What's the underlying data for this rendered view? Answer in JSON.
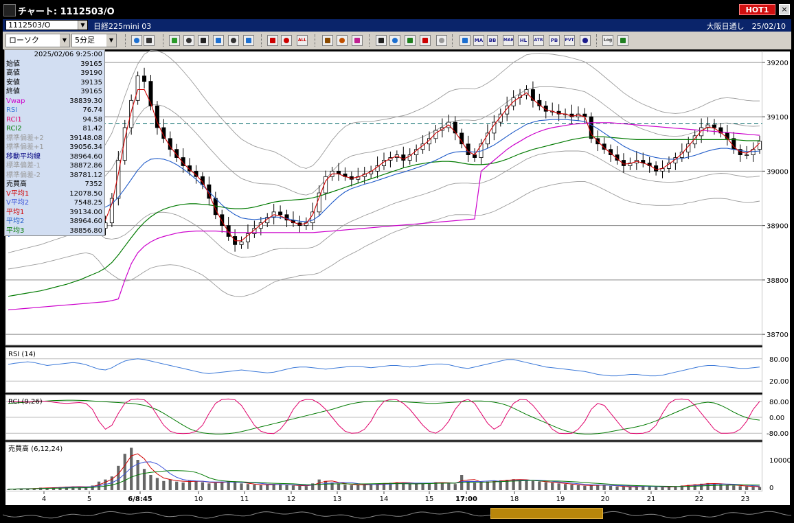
{
  "window": {
    "title": "チャート: 1112503/O",
    "hot_label": "HOT1",
    "close_label": "×"
  },
  "infobar": {
    "symbol": "1112503/O",
    "instrument": "日経225mini 03",
    "right_text": "大阪日通し　25/02/10"
  },
  "toolbar": {
    "chart_type": "ローソク",
    "period": "5分足",
    "buttons": [
      {
        "name": "zoom-icon",
        "label": ""
      },
      {
        "name": "split-icon",
        "label": ""
      },
      {
        "name": "draw-line-icon",
        "label": ""
      },
      {
        "name": "brush-icon",
        "label": ""
      },
      {
        "name": "cursor-icon",
        "label": ""
      },
      {
        "name": "undo-icon",
        "label": ""
      },
      {
        "name": "print-icon",
        "label": ""
      },
      {
        "name": "clear-icon",
        "label": ""
      },
      {
        "name": "candle-icon",
        "label": ""
      },
      {
        "name": "candle2-icon",
        "label": ""
      },
      {
        "name": "all-button",
        "label": "ALL"
      },
      {
        "name": "gear-icon",
        "label": ""
      },
      {
        "name": "wrench-icon",
        "label": ""
      },
      {
        "name": "color-icon",
        "label": ""
      },
      {
        "name": "down-arrow-icon",
        "label": ""
      },
      {
        "name": "search-icon",
        "label": ""
      },
      {
        "name": "bars-icon",
        "label": ""
      },
      {
        "name": "cross-icon",
        "label": ""
      },
      {
        "name": "disabled-icon",
        "label": ""
      },
      {
        "name": "ichimoku-icon",
        "label": ""
      },
      {
        "name": "ma-button",
        "label": "MA"
      },
      {
        "name": "bb-button",
        "label": "BB"
      },
      {
        "name": "mae-button",
        "label": "MAE"
      },
      {
        "name": "hl-button",
        "label": "HL"
      },
      {
        "name": "atr-button",
        "label": "ATR"
      },
      {
        "name": "pb-button",
        "label": "PB"
      },
      {
        "name": "pvt-button",
        "label": "PVT"
      },
      {
        "name": "box-icon",
        "label": ""
      },
      {
        "name": "log-button",
        "label": "Log"
      },
      {
        "name": "export-icon",
        "label": ""
      }
    ]
  },
  "datapanel": {
    "datetime": "2025/02/06 9:25:00",
    "rows": [
      {
        "label": "始値",
        "value": "39165",
        "color": "#000000"
      },
      {
        "label": "高値",
        "value": "39190",
        "color": "#000000"
      },
      {
        "label": "安値",
        "value": "39135",
        "color": "#000000"
      },
      {
        "label": "終値",
        "value": "39165",
        "color": "#000000"
      },
      {
        "label": "Vwap",
        "value": "38839.30",
        "color": "#cc00cc"
      },
      {
        "label": "RSI",
        "value": "76.74",
        "color": "#3a78d8"
      },
      {
        "label": "RCI1",
        "value": "94.58",
        "color": "#e0006a"
      },
      {
        "label": "RCI2",
        "value": "81.42",
        "color": "#007a00"
      },
      {
        "label": "標準偏差+2",
        "value": "39148.08",
        "color": "#9a9a9a"
      },
      {
        "label": "標準偏差+1",
        "value": "39056.34",
        "color": "#9a9a9a"
      },
      {
        "label": "移動平均線",
        "value": "38964.60",
        "color": "#000080"
      },
      {
        "label": "標準偏差-1",
        "value": "38872.86",
        "color": "#9a9a9a"
      },
      {
        "label": "標準偏差-2",
        "value": "38781.12",
        "color": "#9a9a9a"
      },
      {
        "label": "売買高",
        "value": "7352",
        "color": "#000000"
      },
      {
        "label": "V平均1",
        "value": "12078.50",
        "color": "#d00000"
      },
      {
        "label": "V平均2",
        "value": "7548.25",
        "color": "#3a50d8"
      },
      {
        "label": "平均1",
        "value": "39134.00",
        "color": "#d00000"
      },
      {
        "label": "平均2",
        "value": "38964.60",
        "color": "#1e5ac8"
      },
      {
        "label": "平均3",
        "value": "38856.80",
        "color": "#007a00"
      }
    ]
  },
  "chart_data": {
    "type": "candlestick",
    "price_axis": {
      "ticks": [
        "39200",
        "39100",
        "39000",
        "38900",
        "38800",
        "38700"
      ],
      "ylim": [
        38680,
        39220
      ]
    },
    "reference_line": 39088,
    "x_labels": [
      "4",
      "5",
      "6/8:45",
      "10",
      "11",
      "12",
      "13",
      "14",
      "15",
      "17:00",
      "18",
      "19",
      "20",
      "21",
      "22",
      "23"
    ],
    "panels": [
      {
        "name": "RSI (14)",
        "ticks": [
          "80.00",
          "20.00"
        ]
      },
      {
        "name": "RCI (9,26)",
        "ticks": [
          "80.00",
          "0.00",
          "-80.00"
        ]
      },
      {
        "name": "売買高 (6,12,24)",
        "ticks": [
          "10000",
          "0"
        ]
      }
    ],
    "price_path": [
      38925,
      38935,
      38945,
      38955,
      38960,
      38965,
      38975,
      38985,
      38990,
      38990,
      38995,
      38988,
      38980,
      38940,
      38895,
      38905,
      38950,
      39020,
      39080,
      39130,
      39175,
      39165,
      39120,
      39080,
      39060,
      39040,
      39025,
      39010,
      39000,
      38990,
      38975,
      38950,
      38920,
      38900,
      38880,
      38865,
      38870,
      38885,
      38895,
      38905,
      38915,
      38925,
      38920,
      38910,
      38905,
      38900,
      38905,
      38925,
      38960,
      38990,
      39000,
      38995,
      38990,
      38985,
      38990,
      38995,
      39000,
      39010,
      39020,
      39025,
      39030,
      39020,
      39030,
      39040,
      39050,
      39060,
      39075,
      39080,
      39090,
      39070,
      39050,
      39030,
      39025,
      39050,
      39070,
      39090,
      39105,
      39120,
      39135,
      39140,
      39150,
      39130,
      39120,
      39110,
      39110,
      39105,
      39105,
      39100,
      39105,
      39100,
      39060,
      39050,
      39040,
      39030,
      39020,
      39010,
      39015,
      39020,
      39015,
      39010,
      39000,
      39005,
      39015,
      39025,
      39035,
      39050,
      39065,
      39080,
      39085,
      39080,
      39070,
      39060,
      39040,
      39030,
      39030,
      39040,
      39055
    ],
    "ma1_path": [
      38920,
      38930,
      38940,
      38950,
      38958,
      38965,
      38972,
      38980,
      38986,
      38990,
      38992,
      38988,
      38978,
      38950,
      38915,
      38910,
      38940,
      38995,
      39060,
      39110,
      39150,
      39150,
      39125,
      39090,
      39065,
      39045,
      39030,
      39015,
      39003,
      38993,
      38980,
      38958,
      38930,
      38908,
      38888,
      38872,
      38872,
      38882,
      38892,
      38902,
      38912,
      38920,
      38918,
      38912,
      38906,
      38902,
      38904,
      38920,
      38952,
      38982,
      38995,
      38995,
      38990,
      38987,
      38989,
      38994,
      38999,
      39008,
      39017,
      39023,
      39028,
      39022,
      39028,
      39038,
      39047,
      39057,
      39070,
      39077,
      39085,
      39072,
      39055,
      39036,
      39030,
      39048,
      39067,
      39085,
      39100,
      39115,
      39128,
      39136,
      39144,
      39132,
      39122,
      39113,
      39110,
      39106,
      39105,
      39101,
      39103,
      39100,
      39068,
      39055,
      39043,
      39033,
      39023,
      39013,
      39014,
      39018,
      39015,
      39011,
      39003,
      39005,
      39013,
      39022,
      39032,
      39046,
      39060,
      39074,
      39081,
      39079,
      39071,
      39061,
      39045,
      39035,
      39033,
      39040,
      39052
    ],
    "ma2_path": [
      38880,
      38884,
      38888,
      38892,
      38896,
      38900,
      38905,
      38910,
      38915,
      38920,
      38925,
      38930,
      38935,
      38937,
      38935,
      38934,
      38940,
      38952,
      38968,
      38985,
      39002,
      39015,
      39022,
      39023,
      39022,
      39018,
      39012,
      39004,
      38995,
      38985,
      38974,
      38962,
      38950,
      38938,
      38928,
      38920,
      38914,
      38912,
      38911,
      38912,
      38914,
      38916,
      38915,
      38913,
      38910,
      38908,
      38907,
      38910,
      38918,
      38930,
      38942,
      38953,
      38962,
      38968,
      38972,
      38976,
      38979,
      38983,
      38987,
      38991,
      38995,
      38998,
      39002,
      39006,
      39010,
      39015,
      39020,
      39026,
      39032,
      39035,
      39036,
      39036,
      39035,
      39037,
      39042,
      39048,
      39056,
      39064,
      39072,
      39079,
      39086,
      39090,
      39093,
      39094,
      39095,
      39095,
      39095,
      39094,
      39093,
      39091,
      39085,
      39078,
      39070,
      39062,
      39054,
      39046,
      39040,
      39035,
      39031,
      39028,
      39025,
      39023,
      39022,
      39022,
      39023,
      39026,
      39029,
      39033,
      39037,
      39040,
      39042,
      39042,
      39040,
      39038,
      39036,
      39036,
      39037
    ],
    "ma3_path": [
      38770,
      38772,
      38774,
      38776,
      38778,
      38780,
      38783,
      38786,
      38789,
      38792,
      38796,
      38800,
      38805,
      38810,
      38815,
      38822,
      38832,
      38846,
      38862,
      38878,
      38893,
      38906,
      38916,
      38924,
      38930,
      38934,
      38937,
      38939,
      38940,
      38940,
      38939,
      38938,
      38936,
      38934,
      38932,
      38931,
      38931,
      38932,
      38934,
      38937,
      38940,
      38943,
      38945,
      38946,
      38947,
      38948,
      38949,
      38951,
      38954,
      38958,
      38962,
      38966,
      38970,
      38974,
      38978,
      38982,
      38986,
      38990,
      38994,
      38998,
      39002,
      39006,
      39009,
      39012,
      39014,
      39016,
      39017,
      39018,
      39018,
      39017,
      39015,
      39013,
      39012,
      39012,
      39013,
      39015,
      39018,
      39022,
      39027,
      39032,
      39036,
      39040,
      39043,
      39046,
      39049,
      39052,
      39055,
      39058,
      39060,
      39062,
      39063,
      39063,
      39063,
      39062,
      39061,
      39060,
      39059,
      39058,
      39058,
      39058,
      39058,
      39058,
      39058,
      39058,
      39058,
      39058,
      39058,
      39058,
      39058,
      39058,
      39058,
      39058,
      39058,
      39057,
      39056,
      39056,
      39056
    ],
    "vwap_path": [
      38745,
      38746,
      38747,
      38748,
      38749,
      38750,
      38751,
      38752,
      38753,
      38754,
      38755,
      38756,
      38757,
      38758,
      38759,
      38760,
      38762,
      38765,
      38800,
      38830,
      38850,
      38862,
      38870,
      38876,
      38880,
      38883,
      38886,
      38888,
      38889,
      38890,
      38890,
      38890,
      38890,
      38889,
      38888,
      38887,
      38887,
      38887,
      38887,
      38887,
      38887,
      38887,
      38887,
      38887,
      38887,
      38887,
      38887,
      38887,
      38888,
      38889,
      38890,
      38891,
      38892,
      38893,
      38894,
      38895,
      38896,
      38897,
      38898,
      38899,
      38900,
      38901,
      38902,
      38903,
      38904,
      38905,
      38906,
      38907,
      38908,
      38909,
      38910,
      38911,
      38912,
      39000,
      39010,
      39020,
      39030,
      39040,
      39048,
      39055,
      39062,
      39068,
      39073,
      39077,
      39080,
      39082,
      39084,
      39086,
      39087,
      39088,
      39089,
      39089,
      39089,
      39089,
      39088,
      39087,
      39086,
      39085,
      39084,
      39083,
      39082,
      39081,
      39080,
      39079,
      39078,
      39077,
      39076,
      39075,
      39074,
      39073,
      39072,
      39071,
      39070,
      39069,
      39068,
      39067,
      39066
    ],
    "bb_width_path": [
      60,
      62,
      64,
      66,
      68,
      70,
      72,
      74,
      76,
      78,
      80,
      82,
      85,
      90,
      100,
      115,
      130,
      150,
      170,
      185,
      195,
      200,
      200,
      198,
      195,
      190,
      185,
      180,
      175,
      170,
      165,
      162,
      160,
      158,
      155,
      150,
      145,
      140,
      135,
      130,
      125,
      120,
      115,
      110,
      105,
      100,
      98,
      100,
      105,
      110,
      115,
      118,
      120,
      120,
      118,
      115,
      112,
      110,
      108,
      106,
      105,
      104,
      104,
      105,
      106,
      108,
      110,
      112,
      114,
      115,
      116,
      116,
      116,
      118,
      120,
      122,
      124,
      126,
      128,
      128,
      128,
      126,
      124,
      122,
      120,
      118,
      116,
      114,
      112,
      110,
      108,
      106,
      104,
      102,
      100,
      98,
      96,
      94,
      92,
      90,
      88,
      86,
      85,
      84,
      84,
      84,
      85,
      86,
      88,
      90,
      92,
      93,
      94,
      94,
      94,
      93,
      92
    ],
    "rsi_path": [
      65,
      68,
      70,
      72,
      70,
      66,
      62,
      64,
      66,
      68,
      70,
      68,
      64,
      58,
      52,
      50,
      56,
      66,
      74,
      78,
      80,
      78,
      74,
      70,
      66,
      62,
      58,
      54,
      50,
      46,
      42,
      40,
      42,
      44,
      46,
      48,
      50,
      48,
      46,
      44,
      42,
      44,
      48,
      52,
      56,
      58,
      58,
      56,
      54,
      52,
      54,
      56,
      58,
      60,
      60,
      58,
      56,
      58,
      60,
      62,
      62,
      60,
      58,
      60,
      62,
      64,
      66,
      66,
      64,
      60,
      56,
      54,
      58,
      62,
      66,
      70,
      74,
      78,
      78,
      74,
      70,
      66,
      62,
      58,
      56,
      54,
      52,
      50,
      48,
      46,
      42,
      38,
      36,
      34,
      34,
      36,
      38,
      38,
      36,
      34,
      34,
      36,
      40,
      44,
      48,
      52,
      56,
      60,
      62,
      62,
      60,
      58,
      56,
      54,
      54,
      56,
      58
    ],
    "rci1_path": [
      80,
      80,
      78,
      76,
      80,
      82,
      80,
      76,
      72,
      70,
      72,
      74,
      70,
      40,
      -20,
      -60,
      -40,
      20,
      70,
      90,
      92,
      88,
      60,
      10,
      -40,
      -70,
      -80,
      -82,
      -80,
      -70,
      -40,
      20,
      70,
      90,
      92,
      88,
      60,
      10,
      -40,
      -70,
      -80,
      -82,
      -60,
      -20,
      40,
      80,
      90,
      88,
      70,
      40,
      0,
      -40,
      -70,
      -80,
      -78,
      -60,
      -20,
      40,
      80,
      90,
      88,
      70,
      40,
      0,
      -40,
      -70,
      -80,
      -60,
      -20,
      40,
      80,
      90,
      70,
      20,
      -30,
      -60,
      -40,
      20,
      70,
      90,
      88,
      60,
      20,
      -20,
      -60,
      -80,
      -82,
      -80,
      -60,
      -20,
      40,
      70,
      60,
      20,
      -20,
      -60,
      -80,
      -82,
      -80,
      -70,
      -40,
      20,
      70,
      90,
      92,
      88,
      60,
      20,
      -20,
      -60,
      -80,
      -80,
      -78,
      -60,
      -20,
      40,
      80
    ],
    "rci2_path": [
      70,
      72,
      74,
      76,
      78,
      80,
      82,
      84,
      85,
      86,
      86,
      85,
      84,
      82,
      80,
      78,
      76,
      74,
      72,
      70,
      66,
      60,
      50,
      38,
      20,
      0,
      -20,
      -40,
      -58,
      -70,
      -78,
      -82,
      -84,
      -84,
      -82,
      -78,
      -72,
      -64,
      -56,
      -48,
      -40,
      -32,
      -24,
      -16,
      -8,
      0,
      8,
      16,
      24,
      32,
      40,
      50,
      60,
      68,
      74,
      78,
      80,
      82,
      82,
      82,
      80,
      78,
      76,
      74,
      72,
      70,
      70,
      72,
      74,
      76,
      78,
      80,
      82,
      82,
      80,
      76,
      70,
      60,
      46,
      30,
      14,
      0,
      -14,
      -28,
      -42,
      -56,
      -68,
      -76,
      -82,
      -84,
      -84,
      -82,
      -78,
      -72,
      -66,
      -60,
      -54,
      -48,
      -40,
      -30,
      -18,
      -4,
      10,
      24,
      38,
      52,
      64,
      72,
      76,
      72,
      60,
      44,
      26,
      10,
      -2,
      -10,
      -14
    ],
    "volume_path": [
      300,
      400,
      500,
      450,
      600,
      800,
      700,
      900,
      1000,
      1100,
      1200,
      1100,
      900,
      1500,
      2800,
      3500,
      4500,
      8000,
      12000,
      14000,
      10000,
      7000,
      5000,
      4000,
      3000,
      3500,
      2800,
      2500,
      3200,
      3000,
      2600,
      2200,
      2400,
      2800,
      3000,
      2600,
      2200,
      2000,
      1800,
      1600,
      1800,
      2000,
      1800,
      1600,
      1500,
      1400,
      1300,
      2200,
      3500,
      3000,
      2500,
      2200,
      1800,
      1600,
      1700,
      1800,
      1900,
      2000,
      2200,
      2400,
      2600,
      2400,
      2200,
      2000,
      2200,
      2400,
      2600,
      2400,
      2200,
      2000,
      5000,
      3000,
      2400,
      2600,
      2800,
      3000,
      3200,
      3400,
      3600,
      3400,
      3200,
      3000,
      2800,
      2600,
      2400,
      2200,
      2000,
      1800,
      1600,
      1400,
      1600,
      1800,
      1600,
      1400,
      1200,
      1100,
      1000,
      1200,
      1400,
      1200,
      1000,
      900,
      1100,
      1300,
      1500,
      1700,
      1900,
      2100,
      2300,
      2100,
      1900,
      1700,
      1500,
      1300,
      1200,
      1100,
      1000
    ]
  },
  "colors": {
    "candle_up": "#ffffff",
    "candle_down": "#000000",
    "ma1": "#d00000",
    "ma2": "#1e5ac8",
    "ma3": "#007a00",
    "vwap": "#cc00cc",
    "bb": "#9a9a9a",
    "rsi": "#3a78d8",
    "rci1": "#e0006a",
    "rci2": "#007a00",
    "reference": "#2a8080"
  }
}
